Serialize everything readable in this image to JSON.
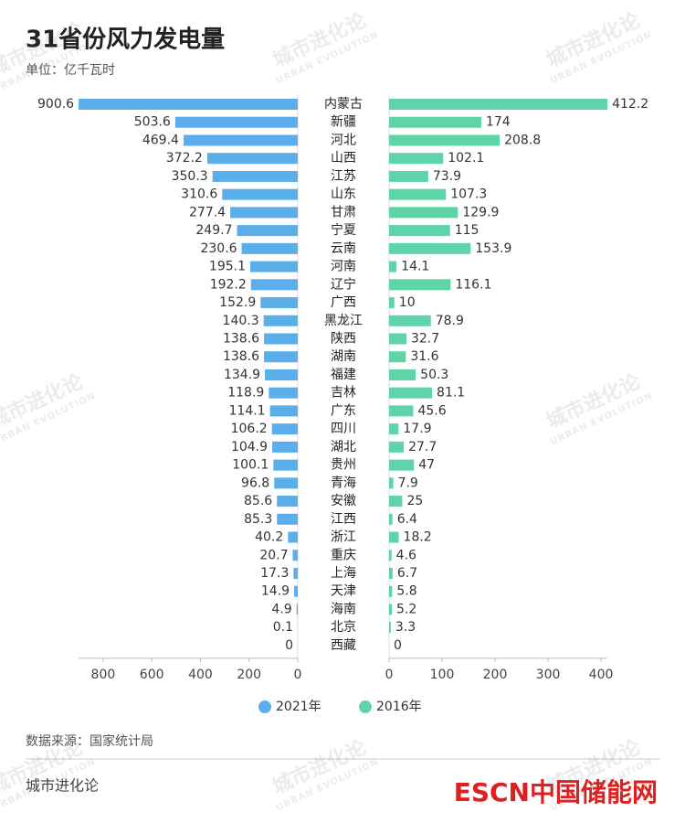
{
  "chart_data": {
    "type": "butterfly-bar",
    "title": "31省份风力发电量",
    "subtitle": "单位：亿千瓦时",
    "source": "数据来源：国家统计局",
    "footer": "城市进化论",
    "logo": "ESCN中国储能网",
    "watermark": [
      "城市进化论",
      "URBAN EVOLUTION"
    ],
    "categories": [
      "内蒙古",
      "新疆",
      "河北",
      "山西",
      "江苏",
      "山东",
      "甘肃",
      "宁夏",
      "云南",
      "河南",
      "辽宁",
      "广西",
      "黑龙江",
      "陕西",
      "湖南",
      "福建",
      "吉林",
      "广东",
      "四川",
      "湖北",
      "贵州",
      "青海",
      "安徽",
      "江西",
      "浙江",
      "重庆",
      "上海",
      "天津",
      "海南",
      "北京",
      "西藏"
    ],
    "legend": "bottom",
    "series": [
      {
        "name": "2021年",
        "color": "#5aaeea",
        "side": "left",
        "xlim": [
          0,
          901
        ],
        "xticks": [
          0,
          200,
          400,
          600,
          800
        ],
        "values": [
          900.6,
          503.6,
          469.4,
          372.2,
          350.3,
          310.6,
          277.4,
          249.7,
          230.6,
          195.1,
          192.2,
          152.9,
          140.3,
          138.6,
          138.6,
          134.9,
          118.9,
          114.1,
          106.2,
          104.9,
          100.1,
          96.8,
          85.6,
          85.3,
          40.2,
          20.7,
          17.3,
          14.9,
          4.9,
          0.1,
          0
        ]
      },
      {
        "name": "2016年",
        "color": "#5fd4a8",
        "side": "right",
        "xlim": [
          0,
          412
        ],
        "xticks": [
          0,
          100,
          200,
          300,
          400
        ],
        "values": [
          412.2,
          174,
          208.8,
          102.1,
          73.9,
          107.3,
          129.9,
          115,
          153.9,
          14.1,
          116.1,
          10,
          78.9,
          32.7,
          31.6,
          50.3,
          81.1,
          45.6,
          17.9,
          27.7,
          47,
          7.9,
          25,
          6.4,
          18.2,
          4.6,
          6.7,
          5.8,
          5.2,
          3.3,
          0
        ]
      }
    ]
  }
}
